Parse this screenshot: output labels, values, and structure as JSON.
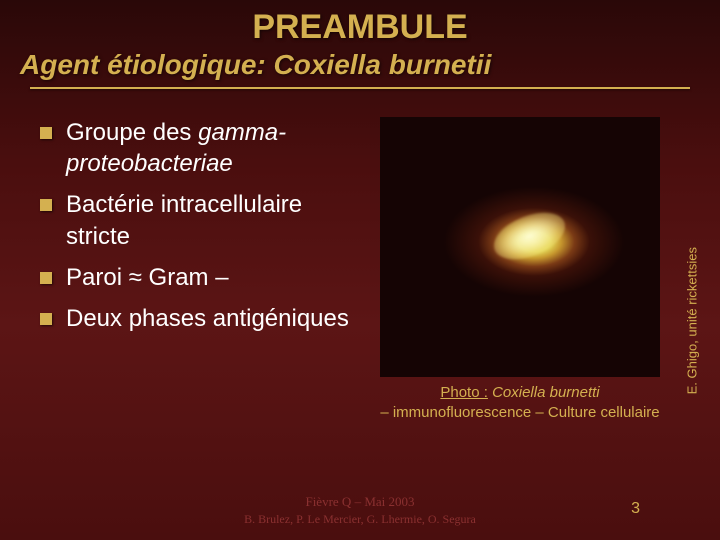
{
  "title": "PREAMBULE",
  "subtitle_prefix": "Agent étiologique: ",
  "subtitle_species": "Coxiella burnetii",
  "bullets": [
    {
      "plain": "Groupe des ",
      "italic": "gamma-proteobacteriae"
    },
    {
      "plain": "Bactérie intracellulaire stricte"
    },
    {
      "plain": "Paroi ≈ Gram –"
    },
    {
      "plain": "Deux phases antigéniques"
    }
  ],
  "photo_credit": "E. Ghigo, unité rickettsies",
  "caption_label": "Photo :",
  "caption_species": "Coxiella burnetti",
  "caption_line2": "– immunofluorescence – Culture cellulaire",
  "footer_line1": "Fièvre Q – Mai 2003",
  "footer_line2": "B. Brulez, P. Le Mercier, G. Lhermie, O. Segura",
  "page_number": "3",
  "colors": {
    "accent": "#d4b050",
    "text": "#ffffff",
    "footer": "#8a3030"
  }
}
